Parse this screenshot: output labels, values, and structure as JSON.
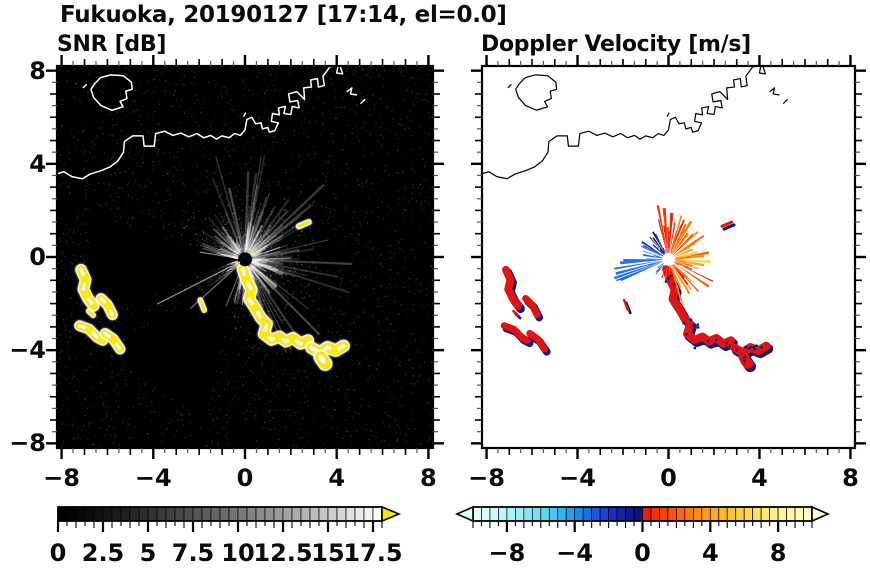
{
  "title": "Fukuoka, 20190127 [17:14, el=0.0]",
  "panels": {
    "snr": {
      "title": "SNR [dB]"
    },
    "doppler": {
      "title": "Doppler Velocity [m/s]"
    }
  },
  "axes": {
    "x_tick_labels": [
      "−8",
      "−4",
      "0",
      "4",
      "8"
    ],
    "x_tick_values": [
      -8,
      -4,
      0,
      4,
      8
    ],
    "y_tick_labels": [
      "8",
      "4",
      "0",
      "−4",
      "−8"
    ],
    "y_tick_values": [
      8,
      4,
      0,
      -4,
      -8
    ],
    "minor_step": 0.5
  },
  "snr_colorbar": {
    "min": 0,
    "max": 18,
    "gamma": 1.3,
    "over_color": "#ffe60a",
    "labels": [
      "0",
      "2.5",
      "5",
      "7.5",
      "10",
      "12.5",
      "15",
      "17.5"
    ],
    "values": [
      0,
      2.5,
      5,
      7.5,
      10,
      12.5,
      15,
      17.5
    ]
  },
  "doppler_colorbar": {
    "min": -10,
    "max": 10,
    "labels": [
      "−8",
      "−4",
      "0",
      "4",
      "8"
    ],
    "values": [
      -8,
      -4,
      0,
      4,
      8
    ],
    "stops": [
      [
        -10,
        "#eafcfd"
      ],
      [
        -8,
        "#baf2f6"
      ],
      [
        -6,
        "#6edcf2"
      ],
      [
        -5,
        "#38c0ee"
      ],
      [
        -4,
        "#1e96e8"
      ],
      [
        -3,
        "#1e60e0"
      ],
      [
        -2,
        "#1838d0"
      ],
      [
        -1,
        "#141c96"
      ],
      [
        -0.01,
        "#0e1270"
      ],
      [
        0.01,
        "#e41410"
      ],
      [
        1,
        "#ef3c0a"
      ],
      [
        2,
        "#f8600a"
      ],
      [
        3,
        "#fc8412"
      ],
      [
        4,
        "#ffa41e"
      ],
      [
        5,
        "#ffbc32"
      ],
      [
        6,
        "#ffd24c"
      ],
      [
        7,
        "#ffe468"
      ],
      [
        8,
        "#fff28c"
      ],
      [
        9,
        "#fff7b0"
      ],
      [
        10,
        "#fffbd4"
      ]
    ]
  },
  "chart_data": {
    "type": "radar_ppi_pair",
    "site": "Fukuoka",
    "date": "20190127",
    "time": "17:14",
    "elevation_deg": 0.0,
    "axis_range_km": [
      -8.2,
      8.2
    ],
    "radar_center_km": [
      0,
      -0.1
    ],
    "seed": 20190127,
    "colors": {
      "panel_bg_snr": "#000000",
      "panel_bg_doppler": "#ffffff",
      "coast_snr": "#ffffff",
      "coast_doppler": "#000000",
      "snr_strip_fill": "#ffe70c",
      "strip_core": "#ffffff",
      "doppler_strip_fill": "#e01414",
      "doppler_strip_shadow": "#131c78"
    },
    "coastline": [
      [
        [
          -6.55,
          7.45
        ],
        [
          -6.3,
          7.7
        ],
        [
          -5.85,
          7.82
        ],
        [
          -5.3,
          7.78
        ],
        [
          -4.95,
          7.5
        ],
        [
          -4.92,
          7.2
        ],
        [
          -5.2,
          7.12
        ],
        [
          -5.15,
          6.8
        ],
        [
          -5.45,
          6.68
        ],
        [
          -5.32,
          6.45
        ],
        [
          -5.8,
          6.3
        ],
        [
          -6.28,
          6.5
        ],
        [
          -6.6,
          6.85
        ],
        [
          -6.72,
          7.2
        ],
        [
          -6.55,
          7.45
        ]
      ],
      [
        [
          -7.05,
          7.28
        ],
        [
          -6.92,
          7.4
        ]
      ],
      [
        [
          -8.45,
          3.5
        ],
        [
          -7.9,
          3.66
        ],
        [
          -7.55,
          3.45
        ],
        [
          -7.1,
          3.36
        ],
        [
          -6.75,
          3.56
        ],
        [
          -6.3,
          3.7
        ],
        [
          -5.9,
          3.86
        ],
        [
          -5.55,
          4.12
        ],
        [
          -5.3,
          4.5
        ],
        [
          -5.26,
          4.96
        ],
        [
          -4.9,
          5.2
        ],
        [
          -4.45,
          5.2
        ],
        [
          -4.4,
          4.76
        ],
        [
          -3.96,
          4.76
        ],
        [
          -3.9,
          5.3
        ],
        [
          -3.5,
          5.4
        ],
        [
          -3.15,
          5.22
        ],
        [
          -2.8,
          5.32
        ],
        [
          -2.45,
          5.16
        ],
        [
          -2.1,
          5.3
        ],
        [
          -1.8,
          5.12
        ],
        [
          -1.5,
          5.22
        ],
        [
          -1.25,
          5.06
        ],
        [
          -1.0,
          5.2
        ],
        [
          -0.7,
          5.12
        ],
        [
          -0.45,
          5.3
        ],
        [
          -0.2,
          5.22
        ],
        [
          0.0,
          5.46
        ],
        [
          0.08,
          5.9
        ],
        [
          0.3,
          6.0
        ],
        [
          0.46,
          5.72
        ],
        [
          0.7,
          5.76
        ],
        [
          0.76,
          5.5
        ],
        [
          1.0,
          5.56
        ],
        [
          1.06,
          5.36
        ],
        [
          1.3,
          5.42
        ],
        [
          1.45,
          5.76
        ],
        [
          1.15,
          5.82
        ],
        [
          1.2,
          6.16
        ],
        [
          1.5,
          6.1
        ],
        [
          1.46,
          6.4
        ],
        [
          1.76,
          6.46
        ],
        [
          1.7,
          6.16
        ],
        [
          2.0,
          6.12
        ],
        [
          2.06,
          6.46
        ],
        [
          2.36,
          6.4
        ],
        [
          2.3,
          6.72
        ],
        [
          1.96,
          6.66
        ],
        [
          1.9,
          7.0
        ],
        [
          2.26,
          7.1
        ],
        [
          2.6,
          6.76
        ],
        [
          2.56,
          7.26
        ],
        [
          2.9,
          7.3
        ],
        [
          2.86,
          7.6
        ],
        [
          3.16,
          7.66
        ],
        [
          3.2,
          7.3
        ],
        [
          3.46,
          7.36
        ],
        [
          3.4,
          7.76
        ],
        [
          3.7,
          8.16
        ],
        [
          4.06,
          8.22
        ],
        [
          4.0,
          7.9
        ],
        [
          4.26,
          7.86
        ],
        [
          4.16,
          8.16
        ]
      ],
      [
        [
          4.46,
          7.1
        ],
        [
          4.66,
          7.26
        ],
        [
          4.6,
          7.0
        ],
        [
          4.86,
          6.96
        ]
      ],
      [
        [
          5.06,
          6.6
        ],
        [
          5.22,
          6.76
        ]
      ],
      [
        [
          -0.05,
          6.05
        ],
        [
          0.02,
          6.18
        ]
      ]
    ],
    "echo_strips": [
      {
        "pts": [
          [
            -7.15,
            -0.55
          ],
          [
            -6.95,
            -0.98
          ],
          [
            -7.05,
            -1.38
          ],
          [
            -6.85,
            -1.78
          ],
          [
            -6.6,
            -2.1
          ]
        ],
        "w": 0.38
      },
      {
        "pts": [
          [
            -6.28,
            -1.78
          ],
          [
            -6.0,
            -2.05
          ],
          [
            -5.78,
            -2.48
          ]
        ],
        "w": 0.34
      },
      {
        "pts": [
          [
            -7.22,
            -2.95
          ],
          [
            -6.8,
            -3.1
          ],
          [
            -6.45,
            -3.45
          ],
          [
            -6.2,
            -3.58
          ]
        ],
        "w": 0.34
      },
      {
        "pts": [
          [
            -6.1,
            -3.28
          ],
          [
            -5.75,
            -3.52
          ],
          [
            -5.45,
            -3.95
          ]
        ],
        "w": 0.34
      },
      {
        "pts": [
          [
            -6.82,
            -2.32
          ],
          [
            -6.62,
            -2.5
          ]
        ],
        "w": 0.12
      },
      {
        "pts": [
          [
            -0.1,
            -0.52
          ],
          [
            0.05,
            -0.95
          ],
          [
            0.28,
            -1.4
          ],
          [
            0.18,
            -1.8
          ],
          [
            0.45,
            -2.2
          ],
          [
            0.68,
            -2.6
          ],
          [
            0.95,
            -2.88
          ],
          [
            0.82,
            -3.3
          ],
          [
            1.15,
            -3.55
          ],
          [
            1.5,
            -3.42
          ],
          [
            1.78,
            -3.62
          ],
          [
            2.1,
            -3.48
          ],
          [
            2.42,
            -3.72
          ],
          [
            2.75,
            -3.58
          ]
        ],
        "w": 0.4
      },
      {
        "pts": [
          [
            2.9,
            -3.9
          ],
          [
            3.25,
            -4.1
          ],
          [
            3.6,
            -3.88
          ],
          [
            3.95,
            -4.02
          ],
          [
            4.3,
            -3.82
          ]
        ],
        "w": 0.42
      },
      {
        "pts": [
          [
            3.3,
            -4.3
          ],
          [
            3.5,
            -4.58
          ]
        ],
        "w": 0.5
      },
      {
        "pts": [
          [
            -1.95,
            -1.85
          ],
          [
            -1.78,
            -2.28
          ]
        ],
        "w": 0.12
      },
      {
        "pts": [
          [
            2.35,
            1.32
          ],
          [
            2.78,
            1.5
          ]
        ],
        "w": 0.14
      }
    ],
    "snr": {
      "sectors": [
        {
          "a0": 0,
          "a1": 360,
          "n": 150,
          "l0": 0.5,
          "l1": 2.0,
          "alpha0": 0.18,
          "alpha1": 0.5,
          "w0": 1,
          "w1": 2
        },
        {
          "a0": -70,
          "a1": 115,
          "n": 48,
          "l0": 1.5,
          "l1": 4.8,
          "alpha0": 0.1,
          "alpha1": 0.3,
          "w0": 1,
          "w1": 2.5
        },
        {
          "a0": 115,
          "a1": 165,
          "n": 10,
          "l0": 1.0,
          "l1": 2.5,
          "alpha0": 0.08,
          "alpha1": 0.22,
          "w0": 1,
          "w1": 2
        },
        {
          "a0": 255,
          "a1": 290,
          "n": 8,
          "l0": 0.8,
          "l1": 2.0,
          "alpha0": 0.08,
          "alpha1": 0.2,
          "w0": 1,
          "w1": 2
        }
      ],
      "shadow_sectors": [
        {
          "a0": 165,
          "a1": 203
        },
        {
          "a0": 215,
          "a1": 258
        }
      ],
      "bright_rays": [
        {
          "a": 171,
          "l": 2.0,
          "alpha": 0.5
        },
        {
          "a": 207,
          "l": 4.3,
          "alpha": 0.55
        },
        {
          "a": 222,
          "l": 3.2,
          "alpha": 0.45
        },
        {
          "a": 248,
          "l": 2.2,
          "alpha": 0.35
        }
      ],
      "speckle": {
        "count": 3200,
        "alpha_max": 0.22,
        "center_count": 700,
        "center_radius": 3.2,
        "center_alpha": 0.3
      },
      "halo": {
        "radius": 2.3,
        "alpha": 0.13
      },
      "center_disc_km": 0.3,
      "center_dots": [
        {
          "a": 205,
          "r": 0.38,
          "s": 3.2,
          "c": "#ffe70c"
        },
        {
          "a": 52,
          "r": 0.5,
          "s": 2.4,
          "c": "#ffe70c"
        },
        {
          "a": 30,
          "r": 0.55,
          "s": 2.0,
          "c": "#ffe70c"
        },
        {
          "a": 210,
          "r": 0.28,
          "s": 1.6,
          "c": "#ffffff"
        }
      ]
    },
    "doppler": {
      "sectors": [
        {
          "a0": -8,
          "a1": 38,
          "n": 34,
          "l0": 0.5,
          "l1": 1.9,
          "colors": [
            "#ffa41e",
            "#fc8412",
            "#ffbc32",
            "#f8600a",
            "#ffd24c"
          ]
        },
        {
          "a0": 38,
          "a1": 78,
          "n": 22,
          "l0": 0.7,
          "l1": 2.4,
          "colors": [
            "#f8600a",
            "#ef3c0a",
            "#fc8412",
            "#e42810"
          ]
        },
        {
          "a0": 78,
          "a1": 106,
          "n": 13,
          "l0": 0.5,
          "l1": 2.7,
          "colors": [
            "#e42810",
            "#ef3c0a"
          ]
        },
        {
          "a0": 106,
          "a1": 138,
          "n": 16,
          "l0": 0.4,
          "l1": 1.5,
          "colors": [
            "#10187e",
            "#0e1270",
            "#1b2f9e"
          ]
        },
        {
          "a0": 138,
          "a1": 170,
          "n": 13,
          "l0": 0.4,
          "l1": 1.4,
          "colors": [
            "#2152d8",
            "#2a62e8",
            "#1838d0"
          ]
        },
        {
          "a0": 170,
          "a1": 204,
          "n": 11,
          "l0": 0.8,
          "l1": 3.0,
          "colors": [
            "#1b60ea",
            "#2a6ff2"
          ]
        },
        {
          "a0": 204,
          "a1": 234,
          "n": 6,
          "l0": 0.3,
          "l1": 1.0,
          "colors": [
            "#2a62e8"
          ]
        },
        {
          "a0": 234,
          "a1": 286,
          "n": 8,
          "l0": 0.3,
          "l1": 1.0,
          "colors": [
            "#fc8412",
            "#ef3c0a"
          ]
        },
        {
          "a0": 286,
          "a1": 352,
          "n": 30,
          "l0": 0.5,
          "l1": 2.2,
          "colors": [
            "#f8600a",
            "#fc8412",
            "#ef3c0a",
            "#ffa41e",
            "#d03010"
          ]
        }
      ],
      "specks": {
        "count": 26,
        "jitter": 0.4,
        "strip_indices": [
          5,
          6
        ]
      },
      "center_disc_km": 0.28
    }
  }
}
